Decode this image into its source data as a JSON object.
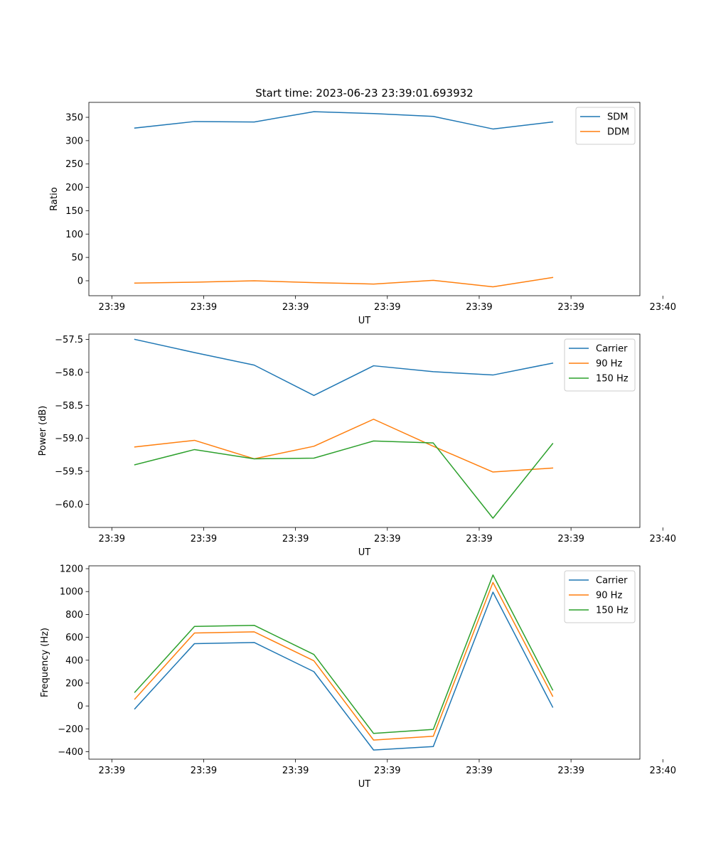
{
  "figure": {
    "title": "Start time: 2023-06-23 23:39:01.693932"
  },
  "chart_data": [
    {
      "type": "line",
      "title": "Start time: 2023-06-23 23:39:01.693932",
      "xlabel": "UT",
      "ylabel": "Ratio",
      "xtick_labels": [
        "23:39",
        "23:39",
        "23:39",
        "23:39",
        "23:39",
        "23:39",
        "23:40"
      ],
      "xlim": [
        -0.25,
        5.75
      ],
      "ylim": [
        -32,
        382
      ],
      "yticks": [
        0,
        50,
        100,
        150,
        200,
        250,
        300,
        350
      ],
      "grid": false,
      "legend": "top-right",
      "x": [
        0.25,
        0.9,
        1.55,
        2.2,
        2.85,
        3.5,
        4.15,
        4.8
      ],
      "series": [
        {
          "name": "SDM",
          "color": "#1f77b4",
          "values": [
            327,
            341,
            340,
            362,
            358,
            352,
            325,
            340
          ]
        },
        {
          "name": "DDM",
          "color": "#ff7f0e",
          "values": [
            -5,
            -3,
            0,
            -4,
            -7,
            1,
            -13,
            7
          ]
        }
      ]
    },
    {
      "type": "line",
      "xlabel": "UT",
      "ylabel": "Power (dB)",
      "xtick_labels": [
        "23:39",
        "23:39",
        "23:39",
        "23:39",
        "23:39",
        "23:39",
        "23:40"
      ],
      "xlim": [
        -0.25,
        5.75
      ],
      "ylim": [
        -60.35,
        -57.42
      ],
      "yticks": [
        -60.0,
        -59.5,
        -59.0,
        -58.5,
        -58.0,
        -57.5
      ],
      "grid": false,
      "legend": "top-right",
      "x": [
        0.25,
        0.9,
        1.55,
        2.2,
        2.85,
        3.5,
        4.15,
        4.8
      ],
      "series": [
        {
          "name": "Carrier",
          "color": "#1f77b4",
          "values": [
            -57.5,
            -57.7,
            -57.89,
            -58.35,
            -57.9,
            -57.99,
            -58.04,
            -57.86
          ]
        },
        {
          "name": "90 Hz",
          "color": "#ff7f0e",
          "values": [
            -59.13,
            -59.03,
            -59.31,
            -59.12,
            -58.71,
            -59.12,
            -59.51,
            -59.45
          ]
        },
        {
          "name": "150 Hz",
          "color": "#2ca02c",
          "values": [
            -59.4,
            -59.17,
            -59.31,
            -59.3,
            -59.04,
            -59.07,
            -60.21,
            -59.08
          ]
        }
      ]
    },
    {
      "type": "line",
      "xlabel": "UT",
      "ylabel": "Frequency (Hz)",
      "xtick_labels": [
        "23:39",
        "23:39",
        "23:39",
        "23:39",
        "23:39",
        "23:39",
        "23:40"
      ],
      "xlim": [
        -0.25,
        5.75
      ],
      "ylim": [
        -465,
        1225
      ],
      "yticks": [
        -400,
        -200,
        0,
        200,
        400,
        600,
        800,
        1000,
        1200
      ],
      "grid": false,
      "legend": "top-right",
      "x": [
        0.25,
        0.9,
        1.55,
        2.2,
        2.85,
        3.5,
        4.15,
        4.8
      ],
      "series": [
        {
          "name": "Carrier",
          "color": "#1f77b4",
          "values": [
            -25,
            545,
            555,
            300,
            -385,
            -355,
            995,
            -10
          ]
        },
        {
          "name": "90 Hz",
          "color": "#ff7f0e",
          "values": [
            60,
            638,
            648,
            395,
            -298,
            -265,
            1080,
            85
          ]
        },
        {
          "name": "150 Hz",
          "color": "#2ca02c",
          "values": [
            120,
            695,
            705,
            450,
            -240,
            -205,
            1145,
            140
          ]
        }
      ]
    }
  ]
}
